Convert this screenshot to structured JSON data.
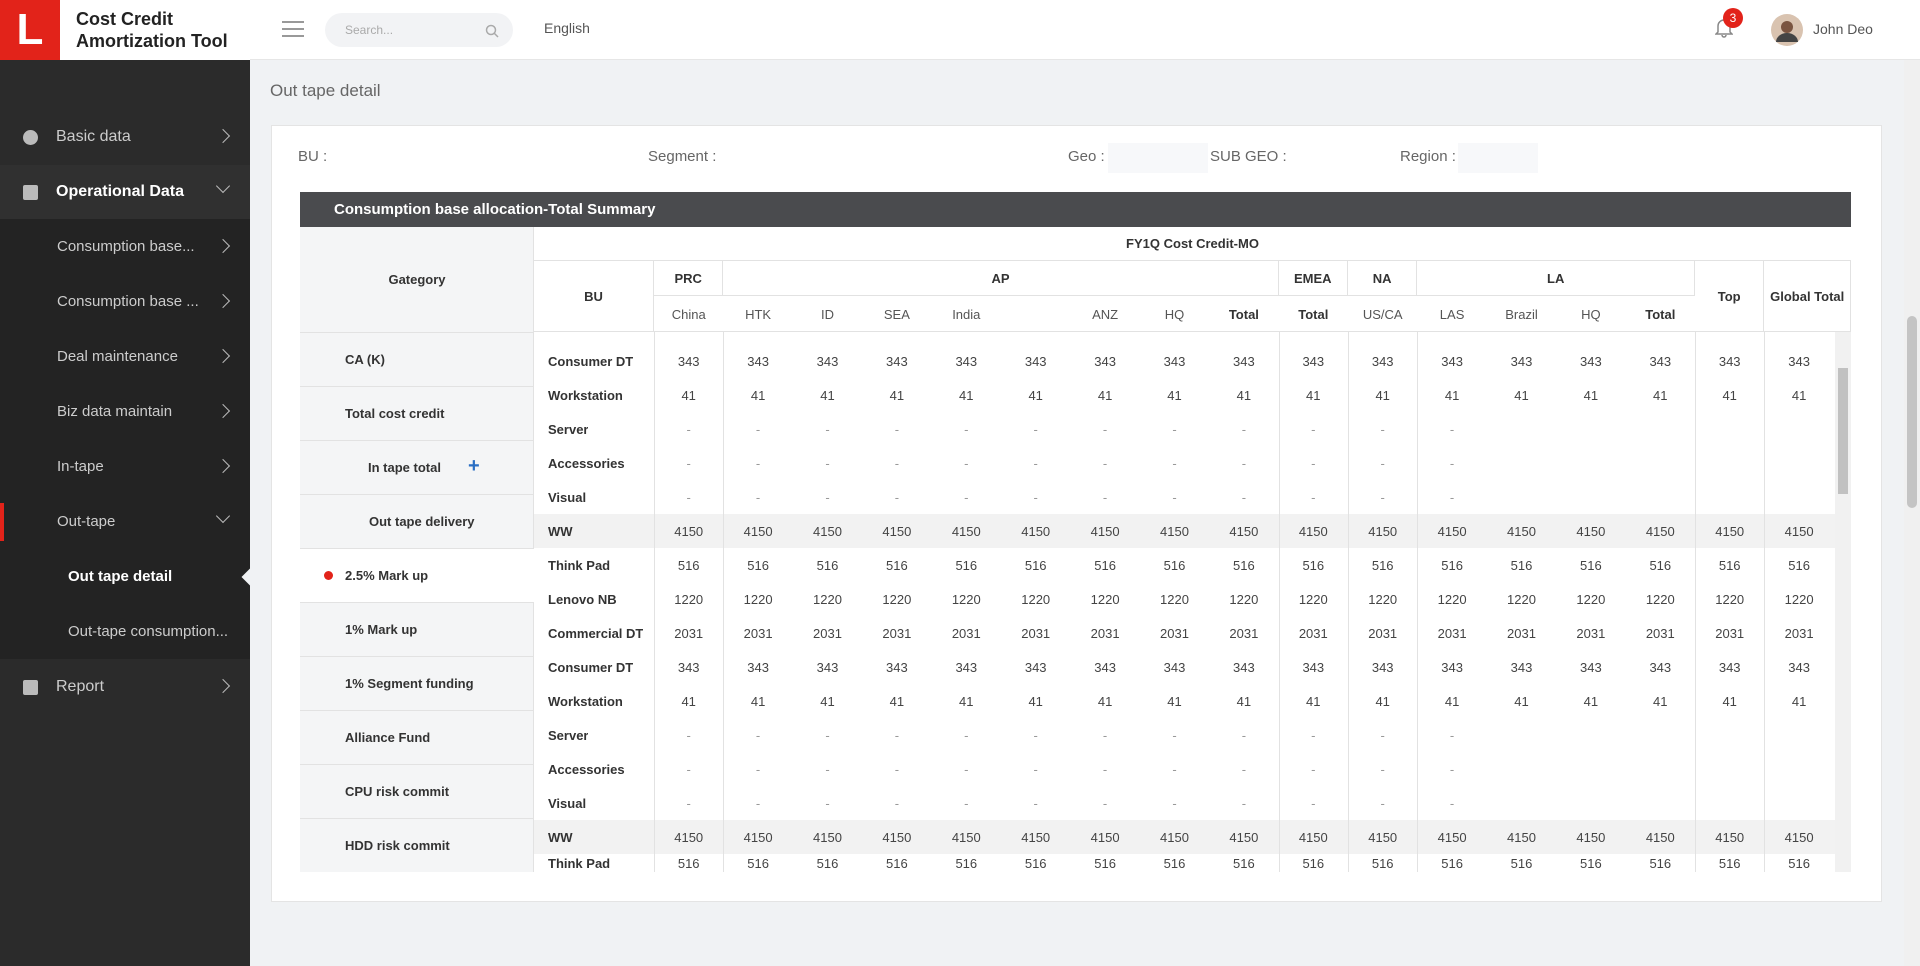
{
  "app": {
    "logo": "L",
    "title": "Cost Credit Amortization Tool"
  },
  "header": {
    "search_placeholder": "Search...",
    "language": "English",
    "notifications": 3,
    "user": "John Deo"
  },
  "sidebar": [
    {
      "label": "Basic data"
    },
    {
      "label": "Operational Data",
      "children": [
        {
          "label": "Consumption base..."
        },
        {
          "label": "Consumption base ..."
        },
        {
          "label": "Deal maintenance"
        },
        {
          "label": "Biz data maintain"
        },
        {
          "label": "In-tape"
        },
        {
          "label": "Out-tape",
          "children": [
            {
              "label": "Out tape detail"
            },
            {
              "label": "Out-tape consumption..."
            }
          ]
        }
      ]
    },
    {
      "label": "Report"
    }
  ],
  "page_title": "Out tape detail",
  "filters": [
    "BU :",
    "Segment :",
    "Geo :",
    "SUB GEO :",
    "Region :"
  ],
  "panel_title": "Consumption base allocation-Total Summary",
  "category_header": "Gategory",
  "categories": [
    "CA (K)",
    "Total cost credit",
    "In tape total",
    "Out tape delivery",
    "2.5% Mark up",
    "1% Mark up",
    "1% Segment funding",
    "Alliance Fund",
    "CPU risk commit",
    "HDD risk commit"
  ],
  "table": {
    "title": "FY1Q Cost Credit-MO",
    "bu_header": "BU",
    "groups": [
      {
        "name": "PRC",
        "columns": [
          "China"
        ]
      },
      {
        "name": "AP",
        "columns": [
          "HTK",
          "ID",
          "SEA",
          "India",
          null,
          "ANZ",
          "HQ",
          "Total"
        ]
      },
      {
        "name": "EMEA",
        "columns": [
          "Total"
        ]
      },
      {
        "name": "NA",
        "columns": [
          "US/CA"
        ]
      },
      {
        "name": "LA",
        "columns": [
          "LAS",
          "Brazil",
          "HQ",
          "Total"
        ]
      },
      {
        "name": "Top",
        "columns": []
      },
      {
        "name": "Global Total",
        "columns": []
      }
    ],
    "rows": [
      {
        "bu": "Consumer DT",
        "cells": [
          343,
          343,
          343,
          343,
          343,
          343,
          343,
          343,
          343,
          343,
          343,
          343,
          343,
          343,
          343,
          343,
          343
        ]
      },
      {
        "bu": "Workstation",
        "cells": [
          41,
          41,
          41,
          41,
          41,
          41,
          41,
          41,
          41,
          41,
          41,
          41,
          41,
          41,
          41,
          41,
          41
        ]
      },
      {
        "bu": "Server",
        "cells": [
          "-",
          "-",
          "-",
          "-",
          "-",
          "-",
          "-",
          "-",
          "-",
          "-",
          "-",
          "-",
          null,
          null,
          null,
          null,
          null
        ]
      },
      {
        "bu": "Accessories",
        "cells": [
          "-",
          "-",
          "-",
          "-",
          "-",
          "-",
          "-",
          "-",
          "-",
          "-",
          "-",
          "-",
          null,
          null,
          null,
          null,
          null
        ]
      },
      {
        "bu": "Visual",
        "cells": [
          "-",
          "-",
          "-",
          "-",
          "-",
          "-",
          "-",
          "-",
          "-",
          "-",
          "-",
          "-",
          null,
          null,
          null,
          null,
          null
        ]
      },
      {
        "bu": "WW",
        "cells": [
          4150,
          4150,
          4150,
          4150,
          4150,
          4150,
          4150,
          4150,
          4150,
          4150,
          4150,
          4150,
          4150,
          4150,
          4150,
          4150,
          4150
        ]
      },
      {
        "bu": "Think Pad",
        "cells": [
          516,
          516,
          516,
          516,
          516,
          516,
          516,
          516,
          516,
          516,
          516,
          516,
          516,
          516,
          516,
          516,
          516
        ]
      },
      {
        "bu": "Lenovo NB",
        "cells": [
          1220,
          1220,
          1220,
          1220,
          1220,
          1220,
          1220,
          1220,
          1220,
          1220,
          1220,
          1220,
          1220,
          1220,
          1220,
          1220,
          1220
        ]
      },
      {
        "bu": "Commercial DT",
        "cells": [
          2031,
          2031,
          2031,
          2031,
          2031,
          2031,
          2031,
          2031,
          2031,
          2031,
          2031,
          2031,
          2031,
          2031,
          2031,
          2031,
          2031
        ]
      },
      {
        "bu": "Consumer DT",
        "cells": [
          343,
          343,
          343,
          343,
          343,
          343,
          343,
          343,
          343,
          343,
          343,
          343,
          343,
          343,
          343,
          343,
          343
        ]
      },
      {
        "bu": "Workstation",
        "cells": [
          41,
          41,
          41,
          41,
          41,
          41,
          41,
          41,
          41,
          41,
          41,
          41,
          41,
          41,
          41,
          41,
          41
        ]
      },
      {
        "bu": "Server",
        "cells": [
          "-",
          "-",
          "-",
          "-",
          "-",
          "-",
          "-",
          "-",
          "-",
          "-",
          "-",
          "-",
          null,
          null,
          null,
          null,
          null
        ]
      },
      {
        "bu": "Accessories",
        "cells": [
          "-",
          "-",
          "-",
          "-",
          "-",
          "-",
          "-",
          "-",
          "-",
          "-",
          "-",
          "-",
          null,
          null,
          null,
          null,
          null
        ]
      },
      {
        "bu": "Visual",
        "cells": [
          "-",
          "-",
          "-",
          "-",
          "-",
          "-",
          "-",
          "-",
          "-",
          "-",
          "-",
          "-",
          null,
          null,
          null,
          null,
          null
        ]
      },
      {
        "bu": "WW",
        "cells": [
          4150,
          4150,
          4150,
          4150,
          4150,
          4150,
          4150,
          4150,
          4150,
          4150,
          4150,
          4150,
          4150,
          4150,
          4150,
          4150,
          4150
        ]
      },
      {
        "bu": "Think Pad",
        "cells": [
          516,
          516,
          516,
          516,
          516,
          516,
          516,
          516,
          516,
          516,
          516,
          516,
          516,
          516,
          516,
          516,
          516
        ]
      }
    ]
  }
}
